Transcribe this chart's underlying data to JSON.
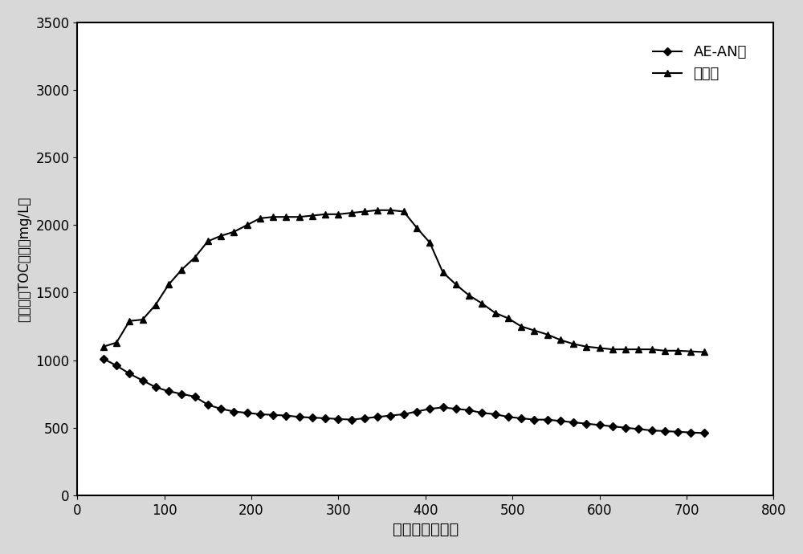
{
  "xlabel": "填埋天数（天）",
  "ylabel": "滲滤液中TOC含量（mg/L）",
  "xlim": [
    0,
    800
  ],
  "ylim": [
    0,
    3500
  ],
  "xticks": [
    0,
    100,
    200,
    300,
    400,
    500,
    600,
    700,
    800
  ],
  "yticks": [
    0,
    500,
    1000,
    1500,
    2000,
    2500,
    3000,
    3500
  ],
  "legend_labels": [
    "AE-AN型",
    "厉氧型"
  ],
  "series1_x": [
    30,
    45,
    60,
    75,
    90,
    105,
    120,
    135,
    150,
    165,
    180,
    195,
    210,
    225,
    240,
    255,
    270,
    285,
    300,
    315,
    330,
    345,
    360,
    375,
    390,
    405,
    420,
    435,
    450,
    465,
    480,
    495,
    510,
    525,
    540,
    555,
    570,
    585,
    600,
    615,
    630,
    645,
    660,
    675,
    690,
    705,
    720
  ],
  "series1_y": [
    1010,
    960,
    900,
    850,
    800,
    770,
    750,
    730,
    670,
    640,
    620,
    610,
    600,
    595,
    590,
    580,
    575,
    570,
    565,
    560,
    570,
    580,
    590,
    600,
    620,
    640,
    650,
    640,
    630,
    610,
    600,
    580,
    570,
    560,
    560,
    550,
    540,
    530,
    520,
    510,
    500,
    490,
    480,
    475,
    470,
    465,
    460
  ],
  "series2_x": [
    30,
    45,
    60,
    75,
    90,
    105,
    120,
    135,
    150,
    165,
    180,
    195,
    210,
    225,
    240,
    255,
    270,
    285,
    300,
    315,
    330,
    345,
    360,
    375,
    390,
    405,
    420,
    435,
    450,
    465,
    480,
    495,
    510,
    525,
    540,
    555,
    570,
    585,
    600,
    615,
    630,
    645,
    660,
    675,
    690,
    705,
    720
  ],
  "series2_y": [
    1100,
    1130,
    1290,
    1300,
    1410,
    1560,
    1670,
    1760,
    1880,
    1920,
    1950,
    2000,
    2050,
    2060,
    2060,
    2060,
    2070,
    2080,
    2080,
    2090,
    2100,
    2110,
    2110,
    2100,
    1980,
    1870,
    1650,
    1560,
    1480,
    1420,
    1350,
    1310,
    1250,
    1220,
    1190,
    1150,
    1120,
    1100,
    1090,
    1080,
    1080,
    1080,
    1080,
    1070,
    1070,
    1065,
    1060
  ],
  "line_color": "#000000",
  "marker1": "D",
  "marker2": "^",
  "markersize1": 5,
  "markersize2": 6,
  "linewidth": 1.5,
  "xlabel_fontsize": 14,
  "ylabel_fontsize": 12,
  "tick_fontsize": 12,
  "legend_fontsize": 13,
  "fig_facecolor": "#d8d8d8",
  "plot_facecolor": "#ffffff"
}
